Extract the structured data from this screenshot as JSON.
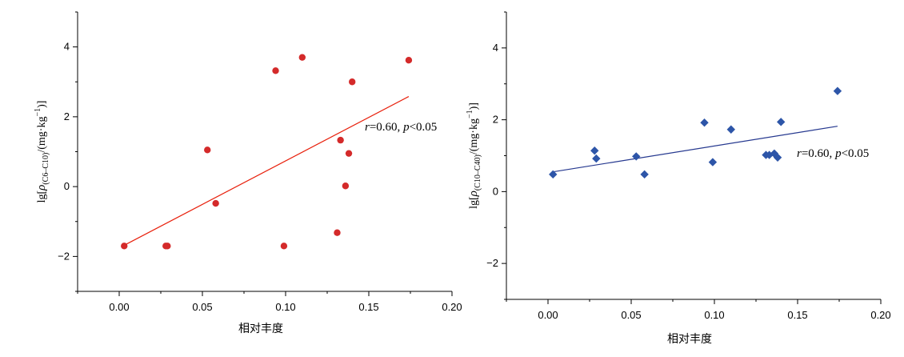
{
  "chart_data": [
    {
      "type": "scatter",
      "xlabel": "相对丰度",
      "ylabel": {
        "prefix": "lg[",
        "rho": "ρ",
        "sub": "(C6–C10)",
        "mid": "/(mg·kg",
        "sup": "−1",
        "suffix": ")]"
      },
      "xlim": [
        -0.025,
        0.2
      ],
      "ylim": [
        -3,
        5
      ],
      "xticks": [
        "0.00",
        "0.05",
        "0.10",
        "0.15",
        "0.20"
      ],
      "yticks": [
        "−2",
        "0",
        "2",
        "4"
      ],
      "annotation": {
        "r": "r",
        "rtext": "=0.60, ",
        "p": "p",
        "ptext": "<0.05"
      },
      "marker": "circle",
      "marker_color": "#d42a2a",
      "line_color": "#e8200c",
      "points": [
        {
          "x": 0.003,
          "y": -1.7
        },
        {
          "x": 0.028,
          "y": -1.7
        },
        {
          "x": 0.029,
          "y": -1.7
        },
        {
          "x": 0.053,
          "y": 1.05
        },
        {
          "x": 0.058,
          "y": -0.48
        },
        {
          "x": 0.094,
          "y": 3.32
        },
        {
          "x": 0.099,
          "y": -1.7
        },
        {
          "x": 0.11,
          "y": 3.7
        },
        {
          "x": 0.131,
          "y": -1.32
        },
        {
          "x": 0.133,
          "y": 1.33
        },
        {
          "x": 0.136,
          "y": 0.02
        },
        {
          "x": 0.138,
          "y": 0.95
        },
        {
          "x": 0.14,
          "y": 3.0
        },
        {
          "x": 0.174,
          "y": 3.62
        }
      ],
      "fit_line": {
        "x": [
          0.003,
          0.174
        ],
        "y": [
          -1.68,
          2.58
        ]
      }
    },
    {
      "type": "scatter",
      "xlabel": "相对丰度",
      "ylabel": {
        "prefix": "lg[",
        "rho": "ρ",
        "sub": "(C10–C40)",
        "mid": "/(mg·kg",
        "sup": "−1",
        "suffix": ")]"
      },
      "xlim": [
        -0.025,
        0.2
      ],
      "ylim": [
        -3,
        5
      ],
      "xticks": [
        "0.00",
        "0.05",
        "0.10",
        "0.15",
        "0.20"
      ],
      "yticks": [
        "−2",
        "0",
        "2",
        "4"
      ],
      "annotation": {
        "r": "r",
        "rtext": "=0.60, ",
        "p": "p",
        "ptext": "<0.05"
      },
      "marker": "diamond",
      "marker_color": "#2d55a8",
      "line_color": "#25388f",
      "points": [
        {
          "x": 0.003,
          "y": 0.48
        },
        {
          "x": 0.028,
          "y": 1.14
        },
        {
          "x": 0.029,
          "y": 0.92
        },
        {
          "x": 0.053,
          "y": 0.98
        },
        {
          "x": 0.058,
          "y": 0.48
        },
        {
          "x": 0.094,
          "y": 1.92
        },
        {
          "x": 0.099,
          "y": 0.82
        },
        {
          "x": 0.11,
          "y": 1.73
        },
        {
          "x": 0.131,
          "y": 1.02
        },
        {
          "x": 0.133,
          "y": 1.02
        },
        {
          "x": 0.136,
          "y": 1.06
        },
        {
          "x": 0.138,
          "y": 0.95
        },
        {
          "x": 0.14,
          "y": 1.94
        },
        {
          "x": 0.174,
          "y": 2.8
        }
      ],
      "fit_line": {
        "x": [
          0.003,
          0.174
        ],
        "y": [
          0.55,
          1.82
        ]
      }
    }
  ]
}
